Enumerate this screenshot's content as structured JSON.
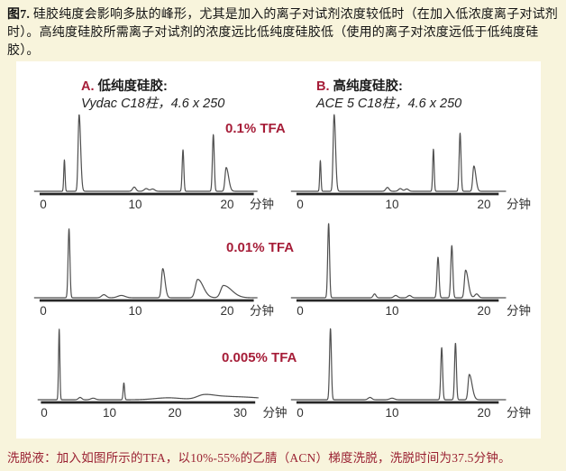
{
  "page": {
    "background": "#F8F4DC",
    "panel_background": "#FFFFFF",
    "accent_red": "#A61D38",
    "footer_color": "#9A2132",
    "curve_color": "#4F4F4F",
    "axis_color": "#262626",
    "tick_color": "#333333"
  },
  "header": {
    "label": "图7.",
    "text": "硅胶纯度会影响多肽的峰形，尤其是加入的离子对试剂浓度较低时（在加入低浓度离子对试剂时）。高纯度硅胶所需离子对试剂的浓度远比低纯度硅胶低（使用的离子对浓度远低于低纯度硅胶）。"
  },
  "footer": {
    "text": "洗脱液：加入如图所示的TFA，以10%-55%的乙腈（ACN）梯度洗脱，洗脱时间为37.5分钟。"
  },
  "columns": [
    {
      "id": "A",
      "label": "A.",
      "title": "低纯度硅胶:",
      "subtitle": "Vydac C18柱，4.6 x 250"
    },
    {
      "id": "B",
      "label": "B.",
      "title": "高纯度硅胶:",
      "subtitle": "ACE 5 C18柱，4.6 x 250"
    }
  ],
  "rows": [
    {
      "condition": "0.1% TFA"
    },
    {
      "condition": "0.01% TFA"
    },
    {
      "condition": "0.005% TFA"
    }
  ],
  "chart_data": [
    {
      "type": "line",
      "panel": "A1",
      "column": "A",
      "row": 1,
      "condition": "0.1% TFA",
      "x_unit": "分钟",
      "x_ticks": [
        0,
        10,
        20
      ],
      "x_range": [
        -1,
        23.3
      ],
      "ylim": [
        0,
        1
      ],
      "peaks": [
        {
          "t": 2.3,
          "h": 0.41,
          "w": 0.07
        },
        {
          "t": 3.9,
          "h": 1.0,
          "w": 0.11,
          "tail": 1.5
        },
        {
          "t": 9.9,
          "h": 0.055,
          "w": 0.18
        },
        {
          "t": 11.2,
          "h": 0.035,
          "w": 0.22
        },
        {
          "t": 11.9,
          "h": 0.03,
          "w": 0.22
        },
        {
          "t": 15.2,
          "h": 0.54,
          "w": 0.09
        },
        {
          "t": 18.5,
          "h": 0.74,
          "w": 0.1
        },
        {
          "t": 19.9,
          "h": 0.31,
          "w": 0.13,
          "tail": 2.0
        }
      ]
    },
    {
      "type": "line",
      "panel": "B1",
      "column": "B",
      "row": 1,
      "condition": "0.1% TFA",
      "x_unit": "分钟",
      "x_ticks": [
        0,
        10,
        20
      ],
      "x_range": [
        -1,
        22.4
      ],
      "ylim": [
        0,
        1
      ],
      "peaks": [
        {
          "t": 2.2,
          "h": 0.4,
          "w": 0.07
        },
        {
          "t": 3.7,
          "h": 1.0,
          "w": 0.11,
          "tail": 1.4
        },
        {
          "t": 9.5,
          "h": 0.05,
          "w": 0.18
        },
        {
          "t": 10.9,
          "h": 0.035,
          "w": 0.2
        },
        {
          "t": 11.6,
          "h": 0.03,
          "w": 0.2
        },
        {
          "t": 14.5,
          "h": 0.55,
          "w": 0.08
        },
        {
          "t": 17.4,
          "h": 0.76,
          "w": 0.1
        },
        {
          "t": 18.9,
          "h": 0.33,
          "w": 0.12,
          "tail": 1.8
        }
      ]
    },
    {
      "type": "line",
      "panel": "A2",
      "column": "A",
      "row": 2,
      "condition": "0.01% TFA",
      "x_unit": "分钟",
      "x_ticks": [
        0,
        10,
        20
      ],
      "x_range": [
        -1,
        23.3
      ],
      "ylim": [
        0,
        1
      ],
      "peaks": [
        {
          "t": 2.8,
          "h": 0.9,
          "w": 0.1
        },
        {
          "t": 6.6,
          "h": 0.04,
          "w": 0.25
        },
        {
          "t": 8.5,
          "h": 0.03,
          "w": 0.4
        },
        {
          "t": 13.0,
          "h": 0.38,
          "w": 0.14,
          "tail": 1.7
        },
        {
          "t": 16.8,
          "h": 0.24,
          "w": 0.25,
          "tail": 2.4
        },
        {
          "t": 19.6,
          "h": 0.16,
          "w": 0.3,
          "tail": 3.0
        }
      ]
    },
    {
      "type": "line",
      "panel": "B2",
      "column": "B",
      "row": 2,
      "condition": "0.01% TFA",
      "x_unit": "分钟",
      "x_ticks": [
        0,
        10,
        20
      ],
      "x_range": [
        -1,
        22.4
      ],
      "ylim": [
        0,
        1
      ],
      "peaks": [
        {
          "t": 3.1,
          "h": 0.97,
          "w": 0.1
        },
        {
          "t": 8.1,
          "h": 0.05,
          "w": 0.15
        },
        {
          "t": 10.4,
          "h": 0.03,
          "w": 0.2
        },
        {
          "t": 11.9,
          "h": 0.03,
          "w": 0.2
        },
        {
          "t": 15.0,
          "h": 0.53,
          "w": 0.11
        },
        {
          "t": 16.5,
          "h": 0.68,
          "w": 0.11
        },
        {
          "t": 18.0,
          "h": 0.36,
          "w": 0.13,
          "tail": 2.2
        },
        {
          "t": 19.2,
          "h": 0.05,
          "w": 0.2
        }
      ]
    },
    {
      "type": "line",
      "panel": "A3",
      "column": "A",
      "row": 3,
      "condition": "0.005% TFA",
      "x_unit": "分钟",
      "x_ticks": [
        0,
        10,
        20,
        30
      ],
      "x_range": [
        -1,
        32.8
      ],
      "ylim": [
        0,
        1
      ],
      "peaks": [
        {
          "t": 2.3,
          "h": 0.92,
          "w": 0.1
        },
        {
          "t": 5.5,
          "h": 0.03,
          "w": 0.25
        },
        {
          "t": 7.5,
          "h": 0.02,
          "w": 0.35
        },
        {
          "t": 12.2,
          "h": 0.22,
          "w": 0.11
        },
        {
          "t": 19.0,
          "h": 0.025,
          "w": 2.0
        },
        {
          "t": 24.5,
          "h": 0.06,
          "w": 1.1,
          "tail": 1.5
        },
        {
          "t": 28.5,
          "h": 0.04,
          "w": 2.2,
          "tail": 2.0
        }
      ]
    },
    {
      "type": "line",
      "panel": "B3",
      "column": "B",
      "row": 3,
      "condition": "0.005% TFA",
      "x_unit": "分钟",
      "x_ticks": [
        0,
        10,
        20
      ],
      "x_range": [
        -1,
        22.4
      ],
      "ylim": [
        0,
        1
      ],
      "peaks": [
        {
          "t": 3.3,
          "h": 0.93,
          "w": 0.1
        },
        {
          "t": 7.6,
          "h": 0.03,
          "w": 0.2
        },
        {
          "t": 10.0,
          "h": 0.02,
          "w": 0.25
        },
        {
          "t": 15.4,
          "h": 0.68,
          "w": 0.1
        },
        {
          "t": 16.9,
          "h": 0.74,
          "w": 0.1
        },
        {
          "t": 18.4,
          "h": 0.33,
          "w": 0.13,
          "tail": 2.3
        }
      ]
    }
  ]
}
